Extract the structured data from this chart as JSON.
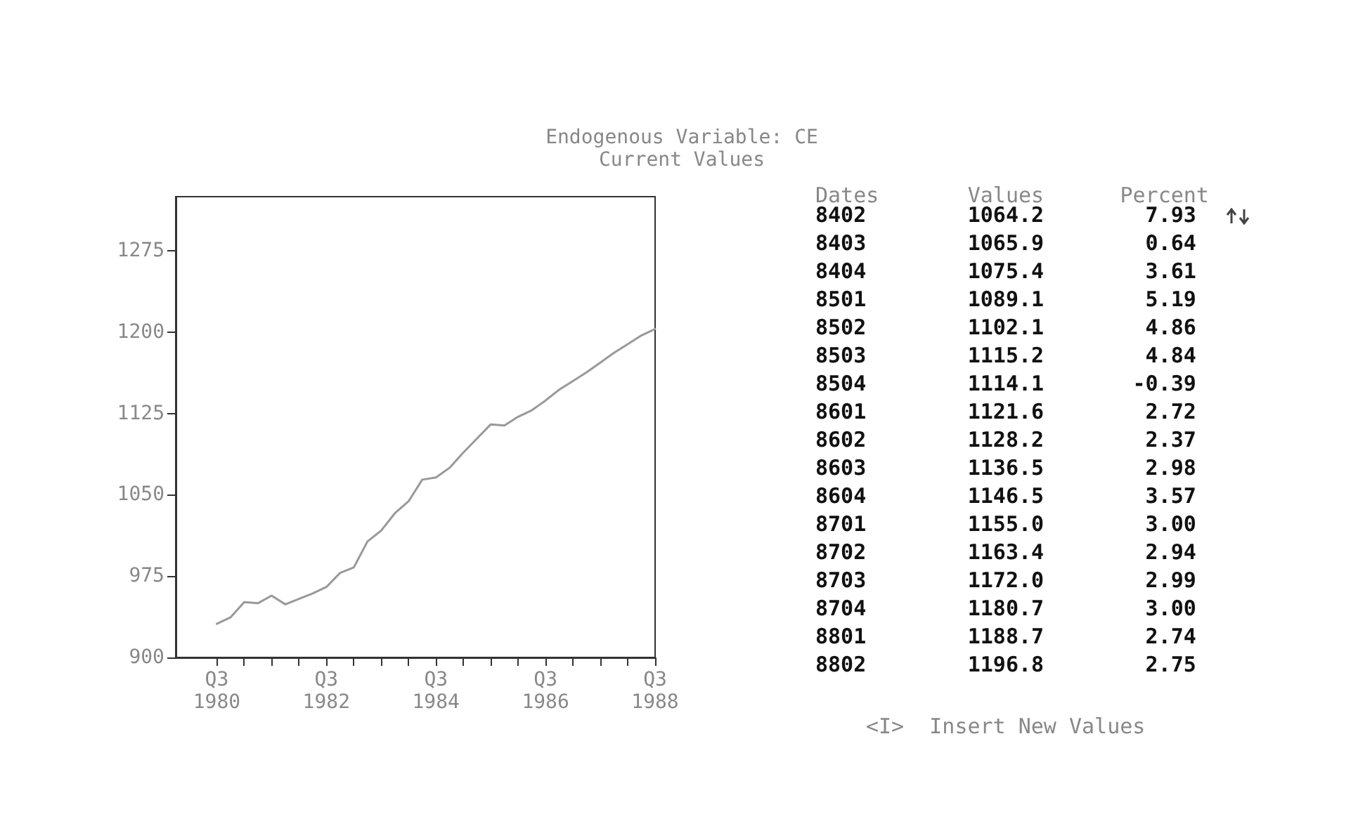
{
  "chart_data": [
    {
      "type": "line",
      "title": "Endogenous Variable: CE",
      "subtitle": "Current Values",
      "categories": [
        null,
        null,
        null,
        "Q3\n1980",
        null,
        null,
        null,
        null,
        null,
        null,
        null,
        "Q3\n1982",
        null,
        null,
        null,
        null,
        null,
        null,
        null,
        "Q3\n1984",
        null,
        null,
        null,
        null,
        null,
        null,
        null,
        "Q3\n1986",
        null,
        null,
        null,
        null,
        null,
        null,
        null,
        "Q3\n1988"
      ],
      "values": [
        null,
        null,
        null,
        931,
        937,
        951,
        950,
        957,
        949,
        954,
        959,
        965,
        978,
        983,
        1007,
        1017,
        1033,
        1044,
        1064,
        1066,
        1075,
        1089,
        1102,
        1115,
        1114,
        1122,
        1128,
        1137,
        1147,
        1155,
        1163,
        1172,
        1181,
        1189,
        1197,
        1203
      ],
      "color": "#999999",
      "marker": "none",
      "line_style": "solid",
      "grid": false,
      "ylim": [
        900,
        1325
      ],
      "yticks": [
        900,
        975,
        1050,
        1125,
        1200,
        1275
      ]
    },
    {
      "type": "other",
      "annotations": [
        "Dates       Values      Percent",
        "8402        1064.2        7.93",
        "8403        1065.9        0.64",
        "8404        1075.4        3.61",
        "8501        1089.1        5.19",
        "8502        1102.1        4.86",
        "8503        1115.2        4.84",
        "8504        1114.1       -0.39",
        "8601        1121.6        2.72",
        "8602        1128.2        2.37",
        "8603        1136.5        2.98",
        "8604        1146.5        3.57",
        "8701        1155.0        3.00",
        "8702        1163.4        2.94",
        "8703        1172.0        2.99",
        "8704        1180.7        3.00",
        "8801        1188.7        2.74",
        "8802        1196.8        2.75",
        "<I>  Insert New Values"
      ]
    }
  ]
}
